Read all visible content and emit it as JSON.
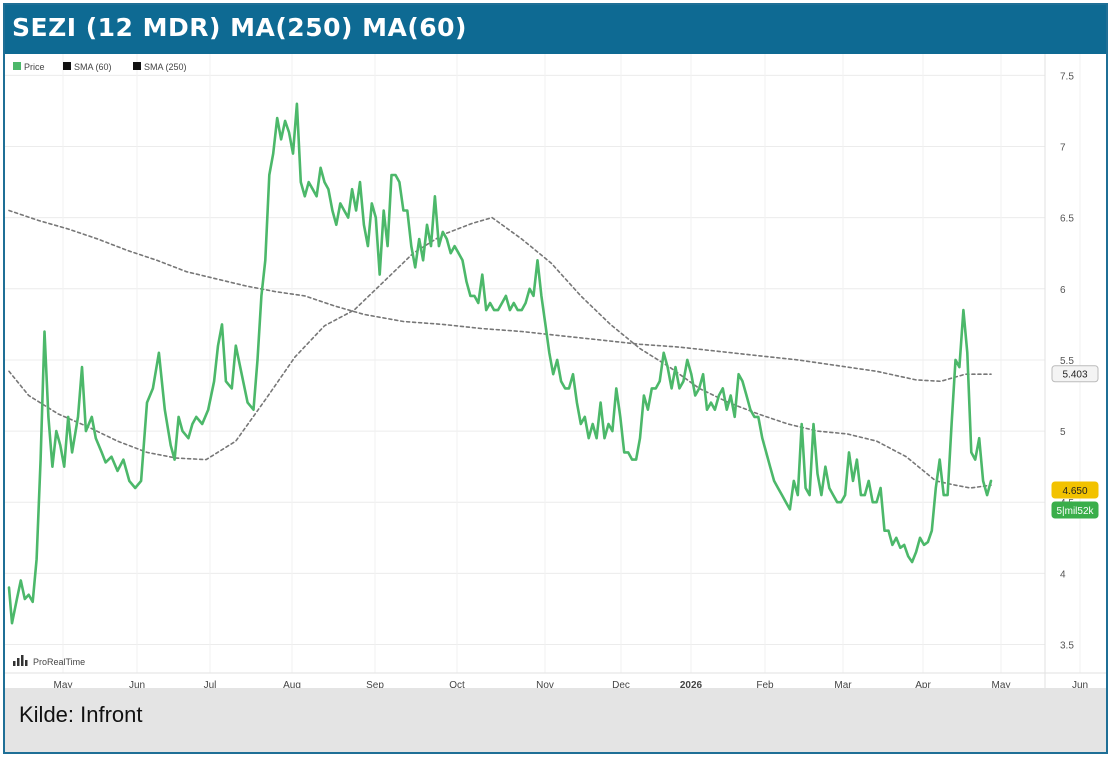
{
  "header": {
    "title": "SEZI (12 MDR) MA(250) MA(60)"
  },
  "footer": {
    "source": "Kilde: Infront"
  },
  "chart_data": {
    "type": "line",
    "legend": {
      "placement": "top-left",
      "entries": [
        "Price",
        "SMA (60)",
        "SMA (250)"
      ]
    },
    "watermark": "ProRealTime",
    "x_ticks": [
      "May",
      "Jun",
      "Jul",
      "Aug",
      "Sep",
      "Oct",
      "Nov",
      "Dec",
      "2026",
      "Feb",
      "Mar",
      "Apr",
      "May",
      "Jun"
    ],
    "y_ticks": [
      3.5,
      4,
      4.5,
      5,
      5.5,
      6,
      6.5,
      7,
      7.5
    ],
    "ylim": [
      3.3,
      7.65
    ],
    "grid": true,
    "colors": {
      "price": "#4cb86a",
      "sma": "#777777",
      "badge_yellow": "#f2c200",
      "badge_green": "#3aae4a"
    },
    "price_badges": [
      {
        "label": "5.403",
        "value": 5.403,
        "style": "light"
      },
      {
        "label": "4.650",
        "value": 4.65,
        "style": "yellow"
      },
      {
        "label": "5|mil52k",
        "value": 4.52,
        "style": "green"
      }
    ],
    "series": [
      {
        "name": "Price",
        "style": "solid",
        "points": [
          [
            0,
            3.9
          ],
          [
            3,
            3.65
          ],
          [
            8,
            3.82
          ],
          [
            12,
            3.95
          ],
          [
            16,
            3.82
          ],
          [
            20,
            3.85
          ],
          [
            24,
            3.8
          ],
          [
            28,
            4.1
          ],
          [
            32,
            4.8
          ],
          [
            36,
            5.7
          ],
          [
            40,
            5.1
          ],
          [
            44,
            4.75
          ],
          [
            48,
            5.0
          ],
          [
            52,
            4.9
          ],
          [
            56,
            4.75
          ],
          [
            60,
            5.1
          ],
          [
            64,
            4.85
          ],
          [
            70,
            5.1
          ],
          [
            74,
            5.45
          ],
          [
            78,
            5.0
          ],
          [
            84,
            5.1
          ],
          [
            88,
            4.95
          ],
          [
            94,
            4.85
          ],
          [
            98,
            4.78
          ],
          [
            104,
            4.82
          ],
          [
            110,
            4.72
          ],
          [
            116,
            4.8
          ],
          [
            122,
            4.65
          ],
          [
            128,
            4.6
          ],
          [
            134,
            4.65
          ],
          [
            140,
            5.2
          ],
          [
            146,
            5.3
          ],
          [
            152,
            5.55
          ],
          [
            158,
            5.15
          ],
          [
            164,
            4.9
          ],
          [
            168,
            4.8
          ],
          [
            172,
            5.1
          ],
          [
            176,
            5.0
          ],
          [
            182,
            4.95
          ],
          [
            186,
            5.05
          ],
          [
            190,
            5.1
          ],
          [
            196,
            5.05
          ],
          [
            202,
            5.15
          ],
          [
            208,
            5.35
          ],
          [
            212,
            5.6
          ],
          [
            216,
            5.75
          ],
          [
            220,
            5.35
          ],
          [
            226,
            5.3
          ],
          [
            230,
            5.6
          ],
          [
            236,
            5.4
          ],
          [
            242,
            5.2
          ],
          [
            248,
            5.15
          ],
          [
            252,
            5.5
          ],
          [
            256,
            5.95
          ],
          [
            260,
            6.2
          ],
          [
            264,
            6.8
          ],
          [
            268,
            6.95
          ],
          [
            272,
            7.2
          ],
          [
            276,
            7.05
          ],
          [
            280,
            7.18
          ],
          [
            284,
            7.1
          ],
          [
            288,
            6.95
          ],
          [
            292,
            7.3
          ],
          [
            296,
            6.75
          ],
          [
            300,
            6.65
          ],
          [
            304,
            6.75
          ],
          [
            308,
            6.7
          ],
          [
            312,
            6.65
          ],
          [
            316,
            6.85
          ],
          [
            320,
            6.75
          ],
          [
            324,
            6.7
          ],
          [
            328,
            6.55
          ],
          [
            332,
            6.45
          ],
          [
            336,
            6.6
          ],
          [
            340,
            6.55
          ],
          [
            344,
            6.5
          ],
          [
            348,
            6.7
          ],
          [
            352,
            6.55
          ],
          [
            356,
            6.75
          ],
          [
            360,
            6.45
          ],
          [
            364,
            6.3
          ],
          [
            368,
            6.6
          ],
          [
            372,
            6.5
          ],
          [
            376,
            6.1
          ],
          [
            380,
            6.55
          ],
          [
            384,
            6.3
          ],
          [
            388,
            6.8
          ],
          [
            392,
            6.8
          ],
          [
            396,
            6.75
          ],
          [
            400,
            6.55
          ],
          [
            404,
            6.55
          ],
          [
            408,
            6.3
          ],
          [
            412,
            6.15
          ],
          [
            416,
            6.35
          ],
          [
            420,
            6.2
          ],
          [
            424,
            6.45
          ],
          [
            428,
            6.3
          ],
          [
            432,
            6.65
          ],
          [
            436,
            6.3
          ],
          [
            440,
            6.4
          ],
          [
            444,
            6.35
          ],
          [
            448,
            6.25
          ],
          [
            452,
            6.3
          ],
          [
            456,
            6.25
          ],
          [
            460,
            6.2
          ],
          [
            464,
            6.05
          ],
          [
            468,
            5.95
          ],
          [
            472,
            5.95
          ],
          [
            476,
            5.9
          ],
          [
            480,
            6.1
          ],
          [
            484,
            5.85
          ],
          [
            488,
            5.9
          ],
          [
            492,
            5.85
          ],
          [
            496,
            5.85
          ],
          [
            500,
            5.9
          ],
          [
            504,
            5.95
          ],
          [
            508,
            5.85
          ],
          [
            512,
            5.9
          ],
          [
            516,
            5.85
          ],
          [
            520,
            5.85
          ],
          [
            524,
            5.9
          ],
          [
            528,
            6.0
          ],
          [
            532,
            5.95
          ],
          [
            536,
            6.2
          ],
          [
            540,
            5.95
          ],
          [
            544,
            5.75
          ],
          [
            548,
            5.55
          ],
          [
            552,
            5.4
          ],
          [
            556,
            5.5
          ],
          [
            560,
            5.35
          ],
          [
            564,
            5.3
          ],
          [
            568,
            5.3
          ],
          [
            572,
            5.4
          ],
          [
            576,
            5.2
          ],
          [
            580,
            5.05
          ],
          [
            584,
            5.1
          ],
          [
            588,
            4.95
          ],
          [
            592,
            5.05
          ],
          [
            596,
            4.95
          ],
          [
            600,
            5.2
          ],
          [
            604,
            4.95
          ],
          [
            608,
            5.05
          ],
          [
            612,
            5.0
          ],
          [
            616,
            5.3
          ],
          [
            620,
            5.1
          ],
          [
            624,
            4.85
          ],
          [
            628,
            4.85
          ],
          [
            632,
            4.8
          ],
          [
            636,
            4.8
          ],
          [
            640,
            4.95
          ],
          [
            644,
            5.25
          ],
          [
            648,
            5.15
          ],
          [
            652,
            5.3
          ],
          [
            656,
            5.3
          ],
          [
            660,
            5.35
          ],
          [
            664,
            5.55
          ],
          [
            668,
            5.45
          ],
          [
            672,
            5.3
          ],
          [
            676,
            5.45
          ],
          [
            680,
            5.3
          ],
          [
            684,
            5.35
          ],
          [
            688,
            5.5
          ],
          [
            692,
            5.4
          ],
          [
            696,
            5.25
          ],
          [
            700,
            5.3
          ],
          [
            704,
            5.4
          ],
          [
            708,
            5.15
          ],
          [
            712,
            5.2
          ],
          [
            716,
            5.15
          ],
          [
            720,
            5.25
          ],
          [
            724,
            5.3
          ],
          [
            728,
            5.15
          ],
          [
            732,
            5.25
          ],
          [
            736,
            5.1
          ],
          [
            740,
            5.4
          ],
          [
            744,
            5.35
          ],
          [
            748,
            5.25
          ],
          [
            752,
            5.15
          ],
          [
            756,
            5.1
          ],
          [
            760,
            5.1
          ],
          [
            764,
            4.95
          ],
          [
            768,
            4.85
          ],
          [
            772,
            4.75
          ],
          [
            776,
            4.65
          ],
          [
            780,
            4.6
          ],
          [
            784,
            4.55
          ],
          [
            788,
            4.5
          ],
          [
            792,
            4.45
          ],
          [
            796,
            4.65
          ],
          [
            800,
            4.55
          ],
          [
            804,
            5.05
          ],
          [
            808,
            4.6
          ],
          [
            812,
            4.55
          ],
          [
            816,
            5.05
          ],
          [
            820,
            4.7
          ],
          [
            824,
            4.55
          ],
          [
            828,
            4.75
          ],
          [
            832,
            4.6
          ],
          [
            836,
            4.55
          ],
          [
            840,
            4.5
          ],
          [
            844,
            4.5
          ],
          [
            848,
            4.55
          ],
          [
            852,
            4.85
          ],
          [
            856,
            4.65
          ],
          [
            860,
            4.8
          ],
          [
            864,
            4.55
          ],
          [
            868,
            4.55
          ],
          [
            872,
            4.65
          ],
          [
            876,
            4.5
          ],
          [
            880,
            4.5
          ],
          [
            884,
            4.6
          ],
          [
            888,
            4.3
          ],
          [
            892,
            4.3
          ],
          [
            896,
            4.2
          ],
          [
            900,
            4.25
          ],
          [
            904,
            4.18
          ],
          [
            908,
            4.2
          ],
          [
            912,
            4.12
          ],
          [
            916,
            4.08
          ],
          [
            920,
            4.15
          ],
          [
            924,
            4.25
          ],
          [
            928,
            4.2
          ],
          [
            932,
            4.22
          ],
          [
            936,
            4.3
          ],
          [
            940,
            4.6
          ],
          [
            944,
            4.8
          ],
          [
            948,
            4.55
          ],
          [
            952,
            4.55
          ],
          [
            956,
            5.05
          ],
          [
            960,
            5.5
          ],
          [
            964,
            5.45
          ],
          [
            968,
            5.85
          ],
          [
            972,
            5.55
          ],
          [
            976,
            4.85
          ],
          [
            980,
            4.8
          ],
          [
            984,
            4.95
          ],
          [
            988,
            4.65
          ],
          [
            992,
            4.55
          ],
          [
            996,
            4.65
          ]
        ]
      },
      {
        "name": "SMA (60)",
        "style": "dashed",
        "points": [
          [
            0,
            5.42
          ],
          [
            20,
            5.25
          ],
          [
            50,
            5.12
          ],
          [
            80,
            5.03
          ],
          [
            110,
            4.93
          ],
          [
            140,
            4.85
          ],
          [
            170,
            4.81
          ],
          [
            200,
            4.8
          ],
          [
            230,
            4.93
          ],
          [
            260,
            5.22
          ],
          [
            290,
            5.52
          ],
          [
            320,
            5.74
          ],
          [
            350,
            5.85
          ],
          [
            380,
            6.05
          ],
          [
            410,
            6.25
          ],
          [
            440,
            6.38
          ],
          [
            470,
            6.46
          ],
          [
            490,
            6.5
          ],
          [
            520,
            6.35
          ],
          [
            550,
            6.18
          ],
          [
            580,
            5.95
          ],
          [
            610,
            5.75
          ],
          [
            640,
            5.58
          ],
          [
            670,
            5.45
          ],
          [
            700,
            5.3
          ],
          [
            730,
            5.2
          ],
          [
            760,
            5.12
          ],
          [
            790,
            5.05
          ],
          [
            820,
            5.0
          ],
          [
            850,
            4.98
          ],
          [
            880,
            4.93
          ],
          [
            910,
            4.82
          ],
          [
            940,
            4.65
          ],
          [
            960,
            4.62
          ],
          [
            975,
            4.6
          ],
          [
            996,
            4.62
          ]
        ]
      },
      {
        "name": "SMA (250)",
        "style": "dashed",
        "points": [
          [
            0,
            6.55
          ],
          [
            30,
            6.48
          ],
          [
            60,
            6.42
          ],
          [
            90,
            6.35
          ],
          [
            120,
            6.27
          ],
          [
            150,
            6.2
          ],
          [
            180,
            6.12
          ],
          [
            210,
            6.07
          ],
          [
            240,
            6.02
          ],
          [
            270,
            5.98
          ],
          [
            300,
            5.95
          ],
          [
            330,
            5.88
          ],
          [
            360,
            5.82
          ],
          [
            400,
            5.77
          ],
          [
            440,
            5.75
          ],
          [
            480,
            5.72
          ],
          [
            520,
            5.7
          ],
          [
            560,
            5.67
          ],
          [
            600,
            5.64
          ],
          [
            640,
            5.61
          ],
          [
            680,
            5.59
          ],
          [
            720,
            5.56
          ],
          [
            760,
            5.53
          ],
          [
            800,
            5.5
          ],
          [
            840,
            5.46
          ],
          [
            880,
            5.42
          ],
          [
            920,
            5.36
          ],
          [
            945,
            5.35
          ],
          [
            970,
            5.4
          ],
          [
            996,
            5.4
          ]
        ]
      }
    ]
  }
}
